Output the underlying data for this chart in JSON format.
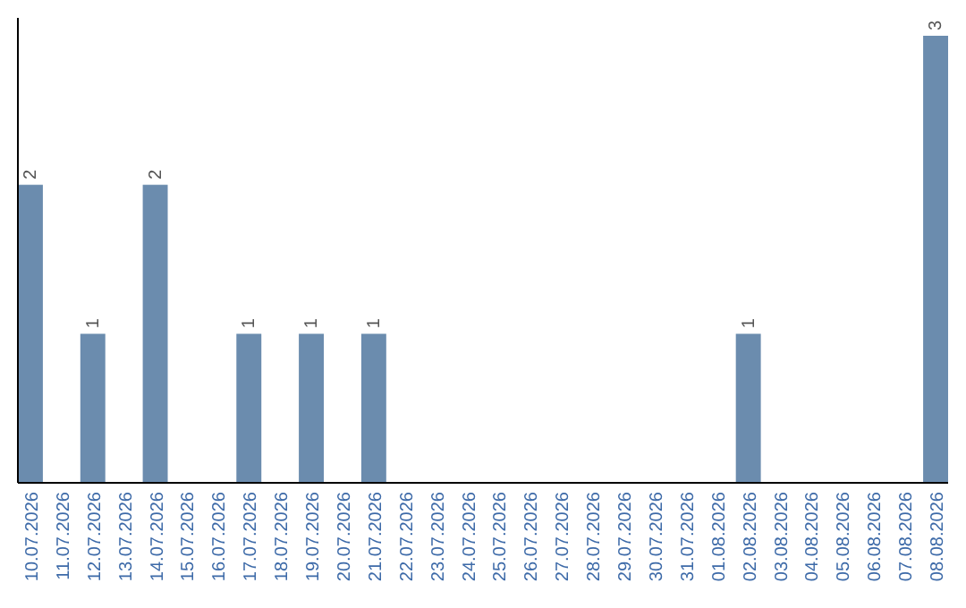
{
  "chart_data": {
    "type": "bar",
    "categories": [
      "10.07.2026",
      "11.07.2026",
      "12.07.2026",
      "13.07.2026",
      "14.07.2026",
      "15.07.2026",
      "16.07.2026",
      "17.07.2026",
      "18.07.2026",
      "19.07.2026",
      "20.07.2026",
      "21.07.2026",
      "22.07.2026",
      "23.07.2026",
      "24.07.2026",
      "25.07.2026",
      "26.07.2026",
      "27.07.2026",
      "28.07.2026",
      "29.07.2026",
      "30.07.2026",
      "31.07.2026",
      "01.08.2026",
      "02.08.2026",
      "03.08.2026",
      "04.08.2026",
      "05.08.2026",
      "06.08.2026",
      "07.08.2026",
      "08.08.2026"
    ],
    "values": [
      2,
      0,
      1,
      0,
      2,
      0,
      0,
      1,
      0,
      1,
      0,
      1,
      0,
      0,
      0,
      0,
      0,
      0,
      0,
      0,
      0,
      0,
      0,
      1,
      0,
      0,
      0,
      0,
      0,
      3
    ],
    "value_labels": [
      "2",
      null,
      "1",
      null,
      "2",
      null,
      null,
      "1",
      null,
      "1",
      null,
      "1",
      null,
      null,
      null,
      null,
      null,
      null,
      null,
      null,
      null,
      null,
      null,
      "1",
      null,
      null,
      null,
      null,
      null,
      "3"
    ],
    "color": "#6b8cae",
    "tick_labels": "x"
  }
}
